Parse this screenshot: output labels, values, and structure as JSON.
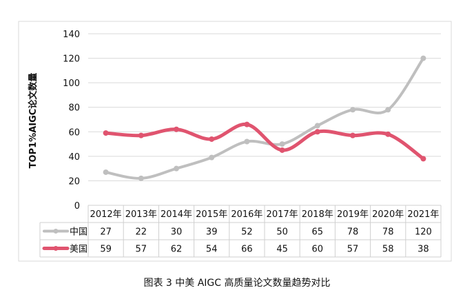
{
  "caption": "图表 3  中美 AIGC 高质量论文数量趋势对比",
  "chart_data": {
    "type": "line",
    "title": "",
    "xlabel": "",
    "ylabel": "TOP1%AIGC论文数量",
    "ylim": [
      0,
      140
    ],
    "yticks": [
      0,
      20,
      40,
      60,
      80,
      100,
      120,
      140
    ],
    "grid": true,
    "legend": "data-table-left",
    "categories": [
      "2012年",
      "2013年",
      "2014年",
      "2015年",
      "2016年",
      "2017年",
      "2018年",
      "2019年",
      "2020年",
      "2021年"
    ],
    "series": [
      {
        "name": "中国",
        "color": "#bfbfbf",
        "values": [
          27,
          22,
          30,
          39,
          52,
          50,
          65,
          78,
          78,
          120
        ]
      },
      {
        "name": "美国",
        "color": "#e0546f",
        "values": [
          59,
          57,
          62,
          54,
          66,
          45,
          60,
          57,
          58,
          38
        ]
      }
    ]
  }
}
